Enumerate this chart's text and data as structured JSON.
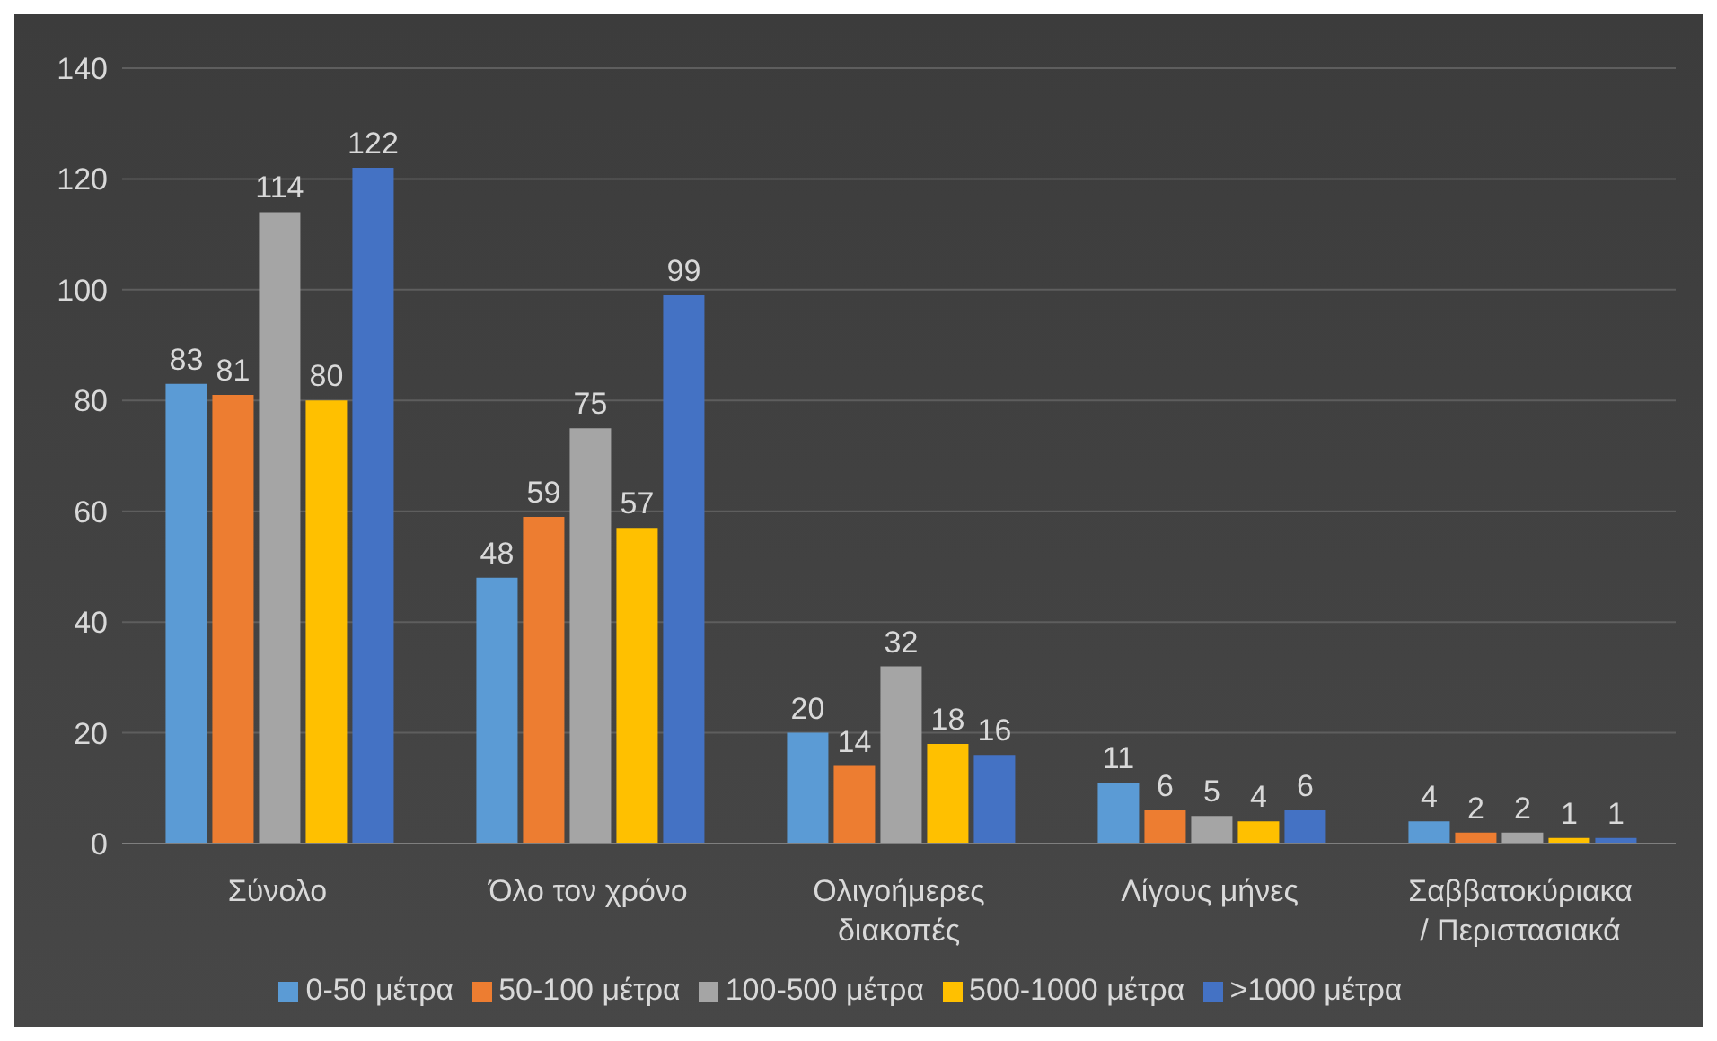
{
  "chart_data": {
    "type": "bar",
    "categories": [
      "Σύνολο",
      "Όλο τον χρόνο",
      "Ολιγοήμερες διακοπές",
      "Λίγους μήνες",
      "Σαββατοκύριακα / Περιστασιακά"
    ],
    "series": [
      {
        "name": "0-50 μέτρα",
        "color": "#5b9bd5",
        "values": [
          83,
          48,
          20,
          11,
          4
        ]
      },
      {
        "name": "50-100 μέτρα",
        "color": "#ed7d31",
        "values": [
          81,
          59,
          14,
          6,
          2
        ]
      },
      {
        "name": "100-500 μέτρα",
        "color": "#a5a5a5",
        "values": [
          114,
          75,
          32,
          5,
          2
        ]
      },
      {
        "name": "500-1000 μέτρα",
        "color": "#ffc000",
        "values": [
          80,
          57,
          18,
          4,
          1
        ]
      },
      {
        "name": ">1000 μέτρα",
        "color": "#4472c4",
        "values": [
          122,
          99,
          16,
          6,
          1
        ]
      }
    ],
    "ylim": [
      0,
      140
    ],
    "yticks": [
      0,
      20,
      40,
      60,
      80,
      100,
      120,
      140
    ],
    "grid": "y",
    "legend": "bottom",
    "data_labels": true
  }
}
